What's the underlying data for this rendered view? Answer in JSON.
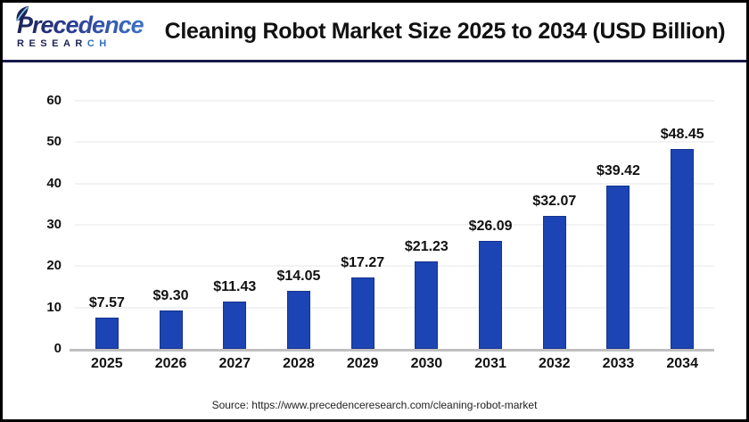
{
  "header": {
    "logo": {
      "name": "Precedence",
      "sub_main": "RESEAR",
      "sub_accent": "CH"
    },
    "title": "Cleaning Robot Market Size 2025 to 2034 (USD Billion)"
  },
  "chart_data": {
    "type": "bar",
    "title": "Cleaning Robot Market Size 2025 to 2034 (USD Billion)",
    "categories": [
      "2025",
      "2026",
      "2027",
      "2028",
      "2029",
      "2030",
      "2031",
      "2032",
      "2033",
      "2034"
    ],
    "values": [
      7.57,
      9.3,
      11.43,
      14.05,
      17.27,
      21.23,
      26.09,
      32.07,
      39.42,
      48.45
    ],
    "value_labels": [
      "$7.57",
      "$9.30",
      "$11.43",
      "$14.05",
      "$17.27",
      "$21.23",
      "$26.09",
      "$32.07",
      "$39.42",
      "$48.45"
    ],
    "xlabel": "",
    "ylabel": "",
    "ylim": [
      0,
      60
    ],
    "yticks": [
      0,
      10,
      20,
      30,
      40,
      50,
      60
    ],
    "grid": true,
    "legend_position": "none",
    "bar_color": "#1c44b4"
  },
  "footer": {
    "source": "Source: https://www.precedenceresearch.com/cleaning-robot-market"
  },
  "colors": {
    "bar": "#1c44b4",
    "divider": "#191a4a",
    "baseline": "#bfbfbf",
    "gridline": "#f3f3f3",
    "logo_navy": "#1c2256",
    "logo_blue": "#2e6fc3"
  }
}
